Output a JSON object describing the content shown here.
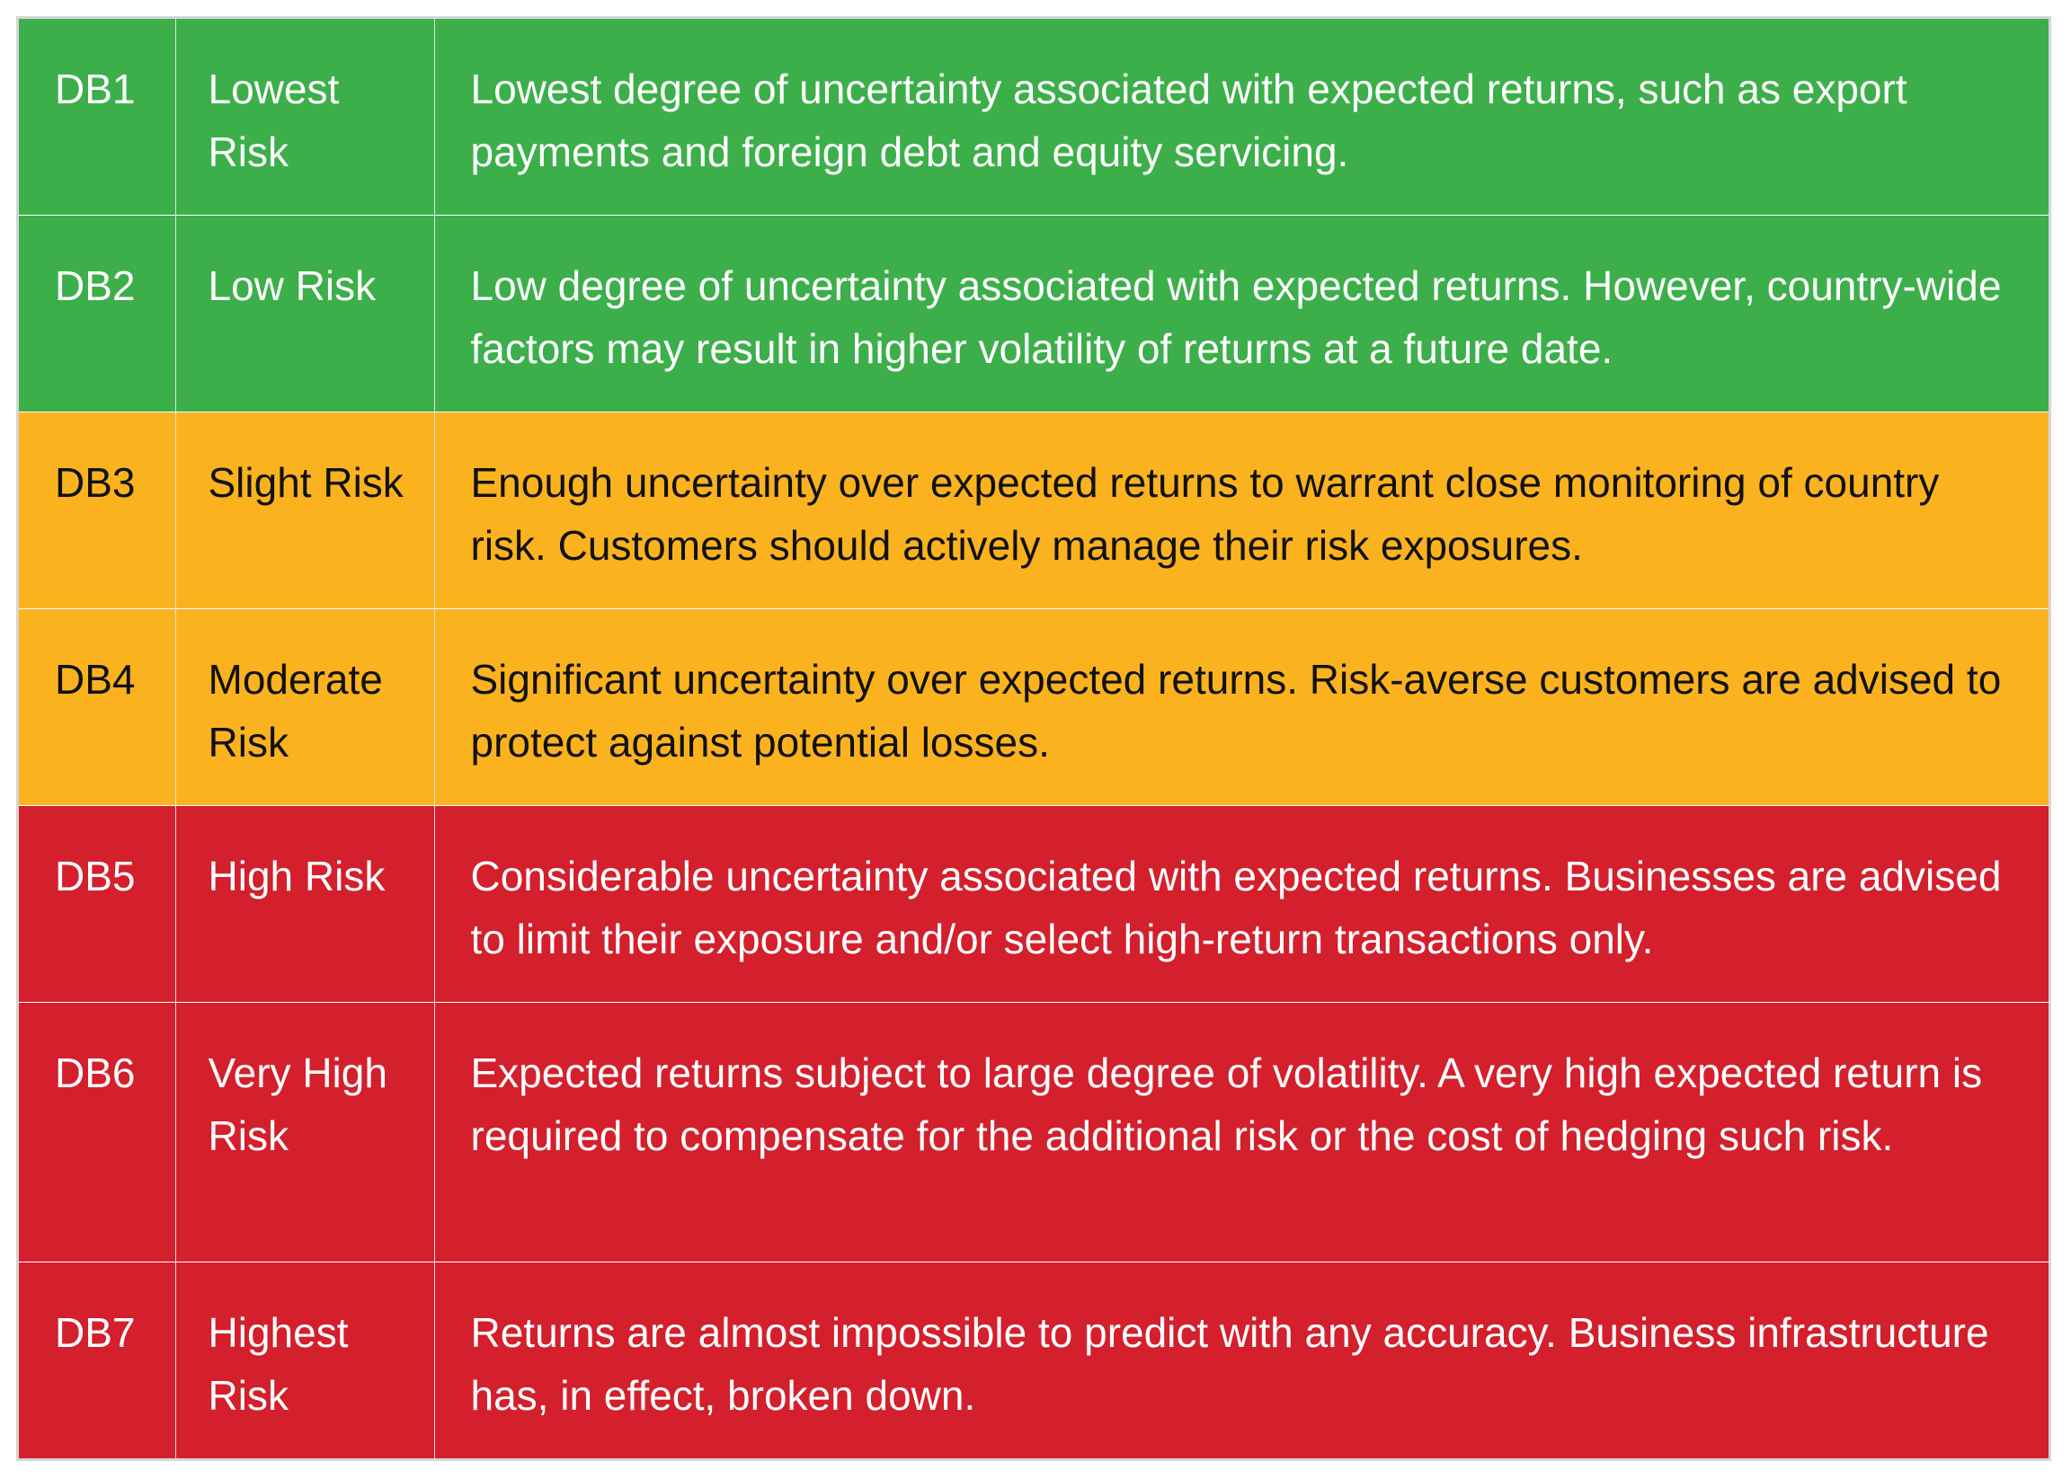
{
  "colors": {
    "low_risk_band": "#3caf4b",
    "medium_risk_band": "#fbb21f",
    "high_risk_band": "#d3202c"
  },
  "rows": [
    {
      "code": "DB1",
      "category": "Lowest Risk",
      "description": "Lowest degree of uncertainty associated with expected returns, such as export payments and foreign debt and equity servicing.",
      "band": "green"
    },
    {
      "code": "DB2",
      "category": "Low Risk",
      "description": "Low degree of uncertainty associated with expected returns. However, country-wide factors may result in higher volatility of returns at a future date.",
      "band": "green"
    },
    {
      "code": "DB3",
      "category": "Slight Risk",
      "description": "Enough uncertainty over expected returns to warrant close monitoring of country risk. Customers should actively manage their risk exposures.",
      "band": "amber"
    },
    {
      "code": "DB4",
      "category": "Moderate Risk",
      "description": "Significant uncertainty over expected returns. Risk-averse customers are advised to protect against potential losses.",
      "band": "amber"
    },
    {
      "code": "DB5",
      "category": "High Risk",
      "description": "Considerable uncertainty associated with expected returns. Businesses are advised to limit their exposure and/or select high-return transactions only.",
      "band": "red"
    },
    {
      "code": "DB6",
      "category": "Very High Risk",
      "description": "Expected returns subject to large degree of volatility. A very high expected return is required to compensate for the additional risk or the cost of hedging such risk.",
      "band": "red"
    },
    {
      "code": "DB7",
      "category": "Highest Risk",
      "description": "Returns are almost impossible to predict with any accuracy. Business infrastructure has, in effect, broken down.",
      "band": "red"
    }
  ]
}
